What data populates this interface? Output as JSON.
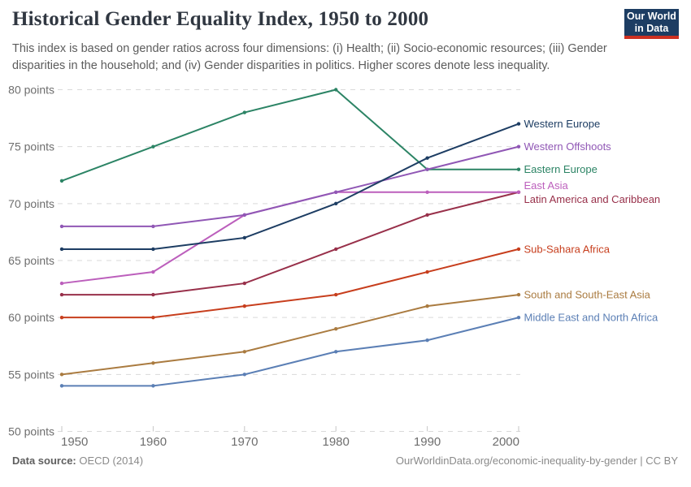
{
  "header": {
    "title": "Historical Gender Equality Index, 1950 to 2000",
    "subtitle": "This index is based on gender ratios across four dimensions: (i) Health; (ii) Socio-economic resources; (iii) Gender disparities in the household; and (iv) Gender disparities in politics. Higher scores denote less inequality.",
    "logo": {
      "line1": "Our World",
      "line2": "in Data",
      "bg_color": "#1d3d63",
      "stripe_color": "#cd3021"
    }
  },
  "chart_data": {
    "type": "line",
    "x": [
      1950,
      1960,
      1970,
      1980,
      1990,
      2000
    ],
    "x_tick_labels": [
      "1950",
      "1960",
      "1970",
      "1980",
      "1990",
      "2000"
    ],
    "y_ticks": [
      50,
      55,
      60,
      65,
      70,
      75,
      80
    ],
    "y_tick_labels": [
      "50 points",
      "55 points",
      "60 points",
      "65 points",
      "70 points",
      "75 points",
      "80 points"
    ],
    "ylim": [
      50,
      80
    ],
    "xlabel": "",
    "ylabel": "",
    "grid": "horizontal-dashed",
    "legend_position": "right-of-line-ends",
    "series": [
      {
        "name": "Western Europe",
        "color": "#1d3d63",
        "values": [
          66,
          66,
          67,
          70,
          74,
          77
        ]
      },
      {
        "name": "Western Offshoots",
        "color": "#9057b5",
        "values": [
          68,
          68,
          69,
          71,
          73,
          75
        ]
      },
      {
        "name": "Eastern Europe",
        "color": "#2c8465",
        "values": [
          72,
          75,
          78,
          80,
          73,
          73
        ]
      },
      {
        "name": "East Asia",
        "color": "#bc5fbc",
        "values": [
          63,
          64,
          69,
          71,
          71,
          71
        ]
      },
      {
        "name": "Latin America and Caribbean",
        "color": "#98304a",
        "values": [
          62,
          62,
          63,
          66,
          69,
          71
        ]
      },
      {
        "name": "Sub-Sahara Africa",
        "color": "#c73e1d",
        "values": [
          60,
          60,
          61,
          62,
          64,
          66
        ]
      },
      {
        "name": "South and South-East Asia",
        "color": "#aa7b40",
        "values": [
          55,
          56,
          57,
          59,
          61,
          62
        ]
      },
      {
        "name": "Middle East and North Africa",
        "color": "#5b7fb5",
        "values": [
          54,
          54,
          55,
          57,
          58,
          60
        ]
      }
    ]
  },
  "footer": {
    "datasource_label": "Data source:",
    "datasource_value": " OECD (2014)",
    "credit": "OurWorldinData.org/economic-inequality-by-gender | CC BY"
  }
}
